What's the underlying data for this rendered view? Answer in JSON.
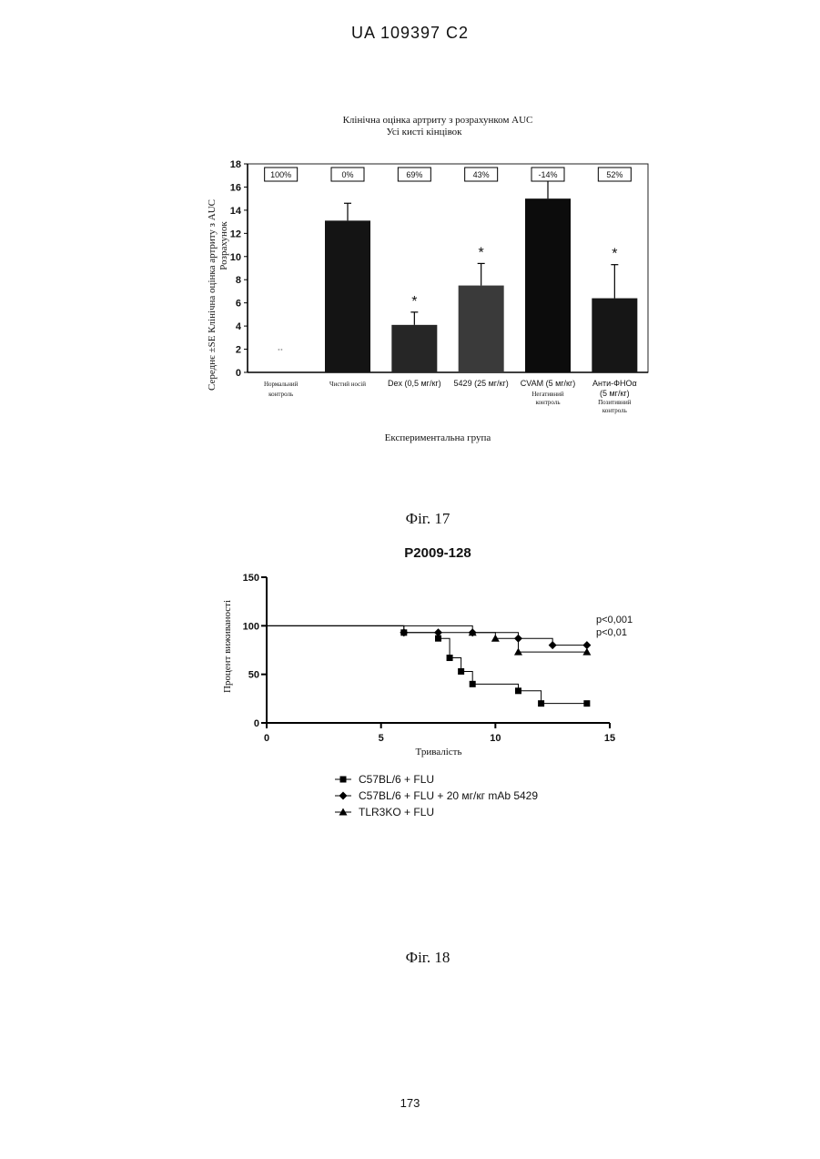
{
  "page": {
    "header": "UA   109397   C2",
    "page_number": "173"
  },
  "figure17": {
    "caption": "Фіг. 17",
    "chart_data": {
      "type": "bar",
      "title": "Клінічна оцінка артриту з розрахунком AUC",
      "subtitle": "Усі кисті кінцівок",
      "ylabel_line1": "Середнє ±SE Клінічна оцінка артриту з AUC",
      "ylabel_line2": "Розрахунок",
      "xlabel": "Експериментальна група",
      "ylim": [
        0,
        18
      ],
      "yticks": [
        "0",
        "2",
        "4",
        "6",
        "8",
        "10",
        "12",
        "14",
        "16",
        "18"
      ],
      "categories": [
        {
          "line1": "Нормальний",
          "line2": "контроль",
          "line3": "",
          "small": true
        },
        {
          "line1": "Чистий носій",
          "line2": "",
          "line3": "",
          "small": true
        },
        {
          "line1": "Dex (0,5 мг/кг)",
          "line2": "",
          "line3": "",
          "small": false
        },
        {
          "line1": "5429 (25 мг/кг)",
          "line2": "",
          "line3": "",
          "small": false
        },
        {
          "line1": "CVAM (5 мг/кг)",
          "line2": "Негативний",
          "line3": "контроль",
          "small": false
        },
        {
          "line1": "Анти-ФНОα",
          "line2": "(5 мг/кг)",
          "line3": "Позитивний контроль",
          "small": false
        }
      ],
      "values": [
        0,
        13.1,
        4.1,
        7.5,
        15.0,
        6.4
      ],
      "errors": [
        0,
        1.5,
        1.1,
        1.9,
        1.6,
        2.9
      ],
      "significant": [
        false,
        false,
        true,
        true,
        false,
        true
      ],
      "star_label": "*",
      "percent_labels": [
        "100%",
        "0%",
        "69%",
        "43%",
        "-14%",
        "52%"
      ],
      "bar_colors": [
        "#000000",
        "#141414",
        "#262626",
        "#3a3a3a",
        "#0c0c0c",
        "#161616"
      ],
      "grid": false
    }
  },
  "figure18": {
    "caption": "Фіг. 18",
    "chart_data": {
      "type": "line",
      "title": "P2009-128",
      "xlabel": "Тривалість",
      "ylabel": "Процент виживаності",
      "xlim": [
        0,
        15
      ],
      "ylim": [
        0,
        150
      ],
      "xticks": [
        "0",
        "5",
        "10",
        "15"
      ],
      "yticks": [
        "0",
        "50",
        "100",
        "150"
      ],
      "step": true,
      "series": [
        {
          "name": "C57BL/6 + FLU",
          "marker": "square",
          "x": [
            0,
            6,
            7.5,
            8,
            8.5,
            9,
            11,
            12,
            14
          ],
          "y": [
            100,
            93,
            87,
            67,
            53,
            40,
            33,
            20,
            20
          ]
        },
        {
          "name": "C57BL/6 + FLU + 20 мг/кг mAb 5429",
          "marker": "diamond",
          "x": [
            0,
            6,
            7.5,
            9,
            11,
            12.5,
            14
          ],
          "y": [
            100,
            93,
            93,
            93,
            87,
            80,
            80
          ]
        },
        {
          "name": "TLR3KO + FLU",
          "marker": "triangle",
          "x": [
            0,
            9,
            10,
            11,
            14
          ],
          "y": [
            100,
            93,
            87,
            73,
            73
          ]
        }
      ],
      "annotations": [
        "p<0,001",
        "p<0,01"
      ],
      "grid": false
    }
  }
}
